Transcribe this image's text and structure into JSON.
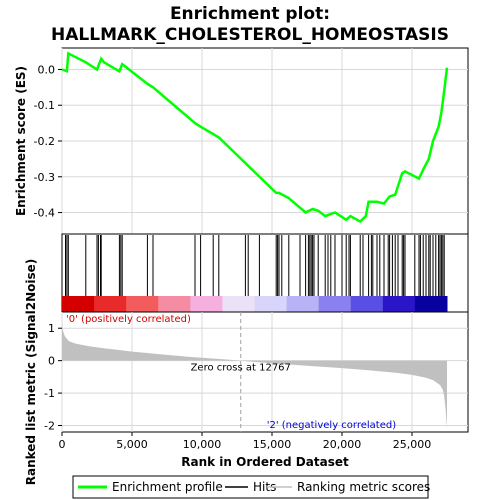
{
  "chart_data": {
    "type": "line",
    "title_line1": "Enrichment plot:",
    "title_line2": "HALLMARK_CHOLESTEROL_HOMEOSTASIS",
    "xlabel": "Rank in Ordered Dataset",
    "ylabel_top": "Enrichment score (ES)",
    "ylabel_bottom": "Ranked list metric (Signal2Noise)",
    "x_range": [
      0,
      29000
    ],
    "x_ticks": [
      0,
      5000,
      10000,
      15000,
      20000,
      25000
    ],
    "x_tick_labels": [
      "0",
      "5,000",
      "10,000",
      "15,000",
      "20,000",
      "25,000"
    ],
    "es_ylim": [
      -0.46,
      0.06
    ],
    "es_yticks": [
      0.0,
      -0.1,
      -0.2,
      -0.3,
      -0.4
    ],
    "es_ytick_labels": [
      "0.0",
      "-0.1",
      "-0.2",
      "-0.3",
      "-0.4"
    ],
    "metric_ylim": [
      -2.2,
      1.5
    ],
    "metric_yticks": [
      1,
      0,
      -1,
      -2
    ],
    "metric_ytick_labels": [
      "1",
      "0",
      "-1",
      "-2"
    ],
    "total_genes": 27500,
    "zero_cross_rank": 12767,
    "zero_cross_label": "Zero cross at 12767",
    "pos_label": "'0' (positively correlated)",
    "neg_label": "'2' (negatively correlated)",
    "enrichment_profile": {
      "name": "Enrichment profile",
      "color": "#00ff00",
      "x": [
        0,
        350,
        450,
        1700,
        2500,
        2800,
        3000,
        4100,
        4300,
        6100,
        6500,
        9500,
        9900,
        11200,
        15300,
        15500,
        16200,
        17400,
        17900,
        18300,
        18800,
        19500,
        20300,
        20600,
        21300,
        21700,
        21900,
        22500,
        23000,
        23400,
        23800,
        24300,
        24500,
        25500,
        25800,
        26200,
        26500,
        26900,
        27100,
        27300,
        27500
      ],
      "y": [
        0.0,
        -0.005,
        0.045,
        0.02,
        0.0,
        0.03,
        0.02,
        -0.005,
        0.015,
        -0.04,
        -0.05,
        -0.15,
        -0.16,
        -0.19,
        -0.345,
        -0.345,
        -0.36,
        -0.4,
        -0.39,
        -0.395,
        -0.41,
        -0.4,
        -0.42,
        -0.41,
        -0.425,
        -0.41,
        -0.37,
        -0.37,
        -0.375,
        -0.355,
        -0.35,
        -0.29,
        -0.285,
        -0.305,
        -0.28,
        -0.25,
        -0.2,
        -0.16,
        -0.12,
        -0.06,
        0.005
      ]
    },
    "hits": {
      "name": "Hits",
      "color": "#000000",
      "ranks": [
        250,
        350,
        450,
        1700,
        2500,
        2600,
        2750,
        2800,
        4100,
        4200,
        4300,
        6100,
        6500,
        9500,
        9900,
        10800,
        11200,
        13100,
        13300,
        14100,
        15300,
        15400,
        15500,
        15700,
        16200,
        17000,
        17400,
        17600,
        17700,
        17800,
        17900,
        18000,
        18300,
        18800,
        19000,
        19200,
        19500,
        20000,
        20300,
        20500,
        20600,
        21300,
        21500,
        21900,
        22100,
        22200,
        22500,
        22700,
        23000,
        23300,
        23400,
        23600,
        23800,
        24000,
        24300,
        24400,
        24500,
        25200,
        25500,
        25600,
        25800,
        26000,
        26200,
        26300,
        26500,
        26700,
        26900,
        27000,
        27100,
        27200,
        27300
      ]
    },
    "ranking_metric": {
      "name": "Ranking metric scores",
      "color": "#c0c0c0",
      "x": [
        0,
        50,
        200,
        500,
        1000,
        2000,
        3000,
        4000,
        5000,
        6000,
        7000,
        8000,
        9000,
        10000,
        11000,
        12000,
        12767,
        14000,
        16000,
        18000,
        20000,
        22000,
        24000,
        25000,
        26000,
        26500,
        27000,
        27200,
        27300,
        27400,
        27500
      ],
      "y": [
        1.2,
        0.95,
        0.75,
        0.6,
        0.52,
        0.44,
        0.38,
        0.33,
        0.28,
        0.24,
        0.2,
        0.16,
        0.12,
        0.09,
        0.06,
        0.03,
        0.0,
        -0.05,
        -0.11,
        -0.17,
        -0.23,
        -0.3,
        -0.38,
        -0.44,
        -0.53,
        -0.6,
        -0.75,
        -0.9,
        -1.1,
        -1.5,
        -2.1
      ]
    },
    "color_bar": {
      "colors": [
        "#d40000",
        "#e82a2a",
        "#f25c5c",
        "#f48ca4",
        "#f5b0e0",
        "#ece2f8",
        "#d8d4fa",
        "#b8b2f6",
        "#8a80f0",
        "#5a4fe4",
        "#2a16c8",
        "#0a00a0"
      ]
    },
    "legend": {
      "items": [
        {
          "label": "Enrichment profile"
        },
        {
          "label": "Hits"
        },
        {
          "label": "Ranking metric scores"
        }
      ]
    }
  }
}
